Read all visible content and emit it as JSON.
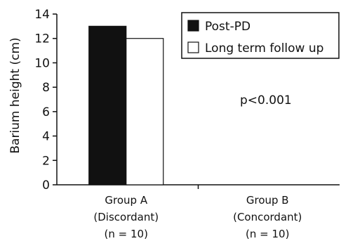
{
  "chart_data": {
    "type": "bar",
    "title": "",
    "xlabel": "",
    "ylabel": "Barium height (cm)",
    "ylim": [
      0,
      14
    ],
    "yticks": [
      "0",
      "2",
      "4",
      "6",
      "8",
      "10",
      "12",
      "14"
    ],
    "categories": [
      [
        "Group A",
        "(Discordant)",
        "(n = 10)"
      ],
      [
        "Group B",
        "(Concordant)",
        "(n = 10)"
      ]
    ],
    "series": [
      {
        "name": "Post-PD",
        "color": "#111111",
        "values": [
          13,
          0
        ]
      },
      {
        "name": "Long term follow up",
        "color": "#ffffff",
        "values": [
          12,
          0
        ]
      }
    ],
    "legend_position": "top-right",
    "annotation": "p<0.001",
    "grid": false
  }
}
